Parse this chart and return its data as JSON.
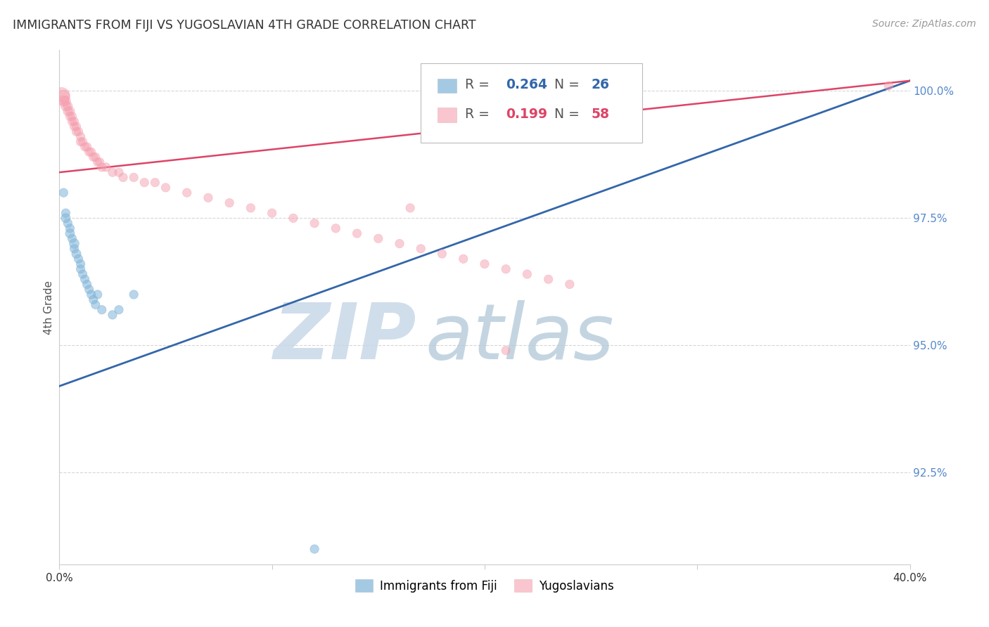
{
  "title": "IMMIGRANTS FROM FIJI VS YUGOSLAVIAN 4TH GRADE CORRELATION CHART",
  "source": "Source: ZipAtlas.com",
  "ylabel": "4th Grade",
  "ytick_labels": [
    "100.0%",
    "97.5%",
    "95.0%",
    "92.5%"
  ],
  "ytick_values": [
    1.0,
    0.975,
    0.95,
    0.925
  ],
  "xlim": [
    0.0,
    0.4
  ],
  "ylim": [
    0.907,
    1.008
  ],
  "legend_blue_label": "Immigrants from Fiji",
  "legend_pink_label": "Yugoslavians",
  "blue_color": "#7EB3D8",
  "pink_color": "#F5A0B0",
  "blue_scatter_x": [
    0.002,
    0.003,
    0.003,
    0.004,
    0.005,
    0.005,
    0.006,
    0.007,
    0.007,
    0.008,
    0.009,
    0.01,
    0.01,
    0.011,
    0.012,
    0.013,
    0.014,
    0.015,
    0.016,
    0.017,
    0.018,
    0.02,
    0.025,
    0.028,
    0.035,
    0.12
  ],
  "blue_scatter_y": [
    0.98,
    0.976,
    0.975,
    0.974,
    0.973,
    0.972,
    0.971,
    0.97,
    0.969,
    0.968,
    0.967,
    0.966,
    0.965,
    0.964,
    0.963,
    0.962,
    0.961,
    0.96,
    0.959,
    0.958,
    0.96,
    0.957,
    0.956,
    0.957,
    0.96,
    0.91
  ],
  "blue_scatter_size": [
    80,
    80,
    90,
    80,
    80,
    90,
    80,
    100,
    80,
    90,
    80,
    80,
    80,
    80,
    80,
    80,
    80,
    80,
    80,
    80,
    80,
    80,
    80,
    80,
    80,
    80
  ],
  "pink_scatter_x": [
    0.001,
    0.002,
    0.002,
    0.003,
    0.003,
    0.004,
    0.004,
    0.005,
    0.005,
    0.006,
    0.006,
    0.007,
    0.007,
    0.008,
    0.008,
    0.009,
    0.01,
    0.01,
    0.011,
    0.012,
    0.013,
    0.014,
    0.015,
    0.016,
    0.017,
    0.018,
    0.019,
    0.02,
    0.022,
    0.025,
    0.028,
    0.03,
    0.035,
    0.04,
    0.045,
    0.05,
    0.06,
    0.07,
    0.08,
    0.09,
    0.1,
    0.11,
    0.12,
    0.13,
    0.14,
    0.15,
    0.16,
    0.17,
    0.18,
    0.19,
    0.2,
    0.21,
    0.22,
    0.23,
    0.24,
    0.39,
    0.165,
    0.21
  ],
  "pink_scatter_y": [
    0.999,
    0.999,
    0.998,
    0.998,
    0.997,
    0.997,
    0.996,
    0.996,
    0.995,
    0.995,
    0.994,
    0.994,
    0.993,
    0.993,
    0.992,
    0.992,
    0.991,
    0.99,
    0.99,
    0.989,
    0.989,
    0.988,
    0.988,
    0.987,
    0.987,
    0.986,
    0.986,
    0.985,
    0.985,
    0.984,
    0.984,
    0.983,
    0.983,
    0.982,
    0.982,
    0.981,
    0.98,
    0.979,
    0.978,
    0.977,
    0.976,
    0.975,
    0.974,
    0.973,
    0.972,
    0.971,
    0.97,
    0.969,
    0.968,
    0.967,
    0.966,
    0.965,
    0.964,
    0.963,
    0.962,
    1.001,
    0.977,
    0.949
  ],
  "pink_scatter_size": [
    300,
    150,
    120,
    100,
    100,
    90,
    90,
    90,
    80,
    80,
    80,
    80,
    80,
    80,
    80,
    80,
    80,
    80,
    80,
    80,
    80,
    80,
    80,
    80,
    80,
    80,
    80,
    80,
    80,
    80,
    80,
    80,
    80,
    80,
    80,
    80,
    80,
    80,
    80,
    80,
    80,
    80,
    80,
    80,
    80,
    80,
    80,
    80,
    80,
    80,
    80,
    80,
    80,
    80,
    80,
    80,
    80,
    80
  ],
  "blue_line_x0": 0.0,
  "blue_line_x1": 0.4,
  "blue_line_y0": 0.942,
  "blue_line_y1": 1.002,
  "pink_line_x0": 0.0,
  "pink_line_x1": 0.4,
  "pink_line_y0": 0.984,
  "pink_line_y1": 1.002,
  "watermark_zip": "ZIP",
  "watermark_atlas": "atlas",
  "background_color": "#FFFFFF",
  "grid_color": "#CCCCCC",
  "spine_color": "#CCCCCC"
}
